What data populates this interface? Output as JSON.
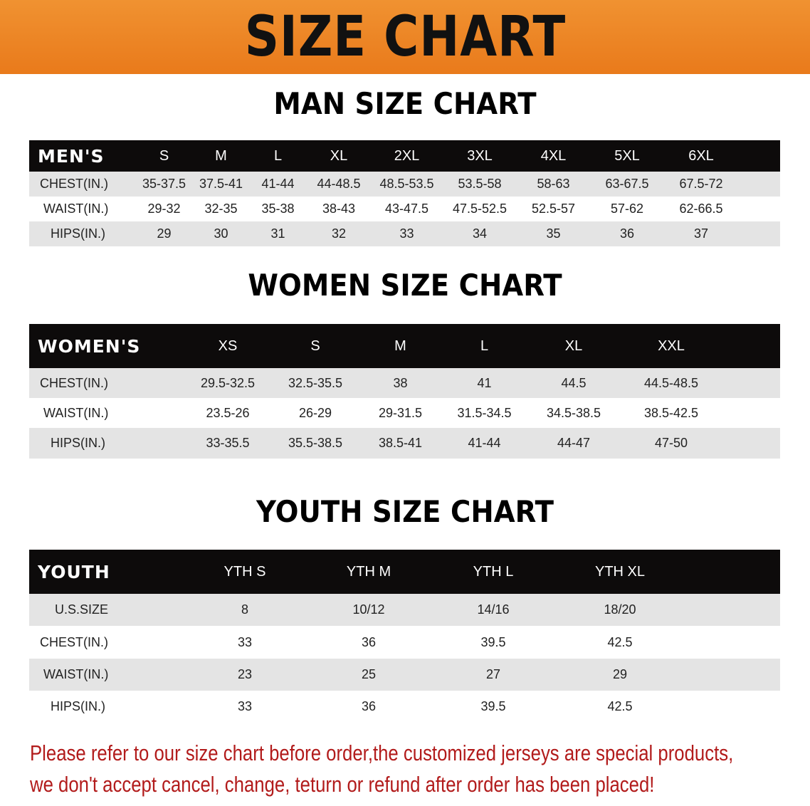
{
  "title": "SIZE CHART",
  "men": {
    "title": "MAN SIZE CHART",
    "header": [
      "MEN'S",
      "S",
      "M",
      "L",
      "XL",
      "2XL",
      "3XL",
      "4XL",
      "5XL",
      "6XL"
    ],
    "rows": [
      [
        "CHEST(IN.)",
        "35-37.5",
        "37.5-41",
        "41-44",
        "44-48.5",
        "48.5-53.5",
        "53.5-58",
        "58-63",
        "63-67.5",
        "67.5-72"
      ],
      [
        "WAIST(IN.)",
        "29-32",
        "32-35",
        "35-38",
        "38-43",
        "43-47.5",
        "47.5-52.5",
        "52.5-57",
        "57-62",
        "62-66.5"
      ],
      [
        "HIPS(IN.)",
        "29",
        "30",
        "31",
        "32",
        "33",
        "34",
        "35",
        "36",
        "37"
      ]
    ]
  },
  "women": {
    "title": "WOMEN SIZE CHART",
    "header": [
      "WOMEN'S",
      "XS",
      "S",
      "M",
      "L",
      "XL",
      "XXL"
    ],
    "rows": [
      [
        "CHEST(IN.)",
        "29.5-32.5",
        "32.5-35.5",
        "38",
        "41",
        "44.5",
        "44.5-48.5"
      ],
      [
        "WAIST(IN.)",
        "23.5-26",
        "26-29",
        "29-31.5",
        "31.5-34.5",
        "34.5-38.5",
        "38.5-42.5"
      ],
      [
        "HIPS(IN.)",
        "33-35.5",
        "35.5-38.5",
        "38.5-41",
        "41-44",
        "44-47",
        "47-50"
      ]
    ]
  },
  "youth": {
    "title": "YOUTH SIZE CHART",
    "header": [
      "YOUTH",
      "YTH S",
      "YTH M",
      "YTH L",
      "YTH XL"
    ],
    "rows": [
      [
        "U.S.SIZE",
        "8",
        "10/12",
        "14/16",
        "18/20"
      ],
      [
        "CHEST(IN.)",
        "33",
        "36",
        "39.5",
        "42.5"
      ],
      [
        "WAIST(IN.)",
        "23",
        "25",
        "27",
        "29"
      ],
      [
        "HIPS(IN.)",
        "33",
        "36",
        "39.5",
        "42.5"
      ]
    ]
  },
  "note": [
    "Please refer to our size chart before order,the customized jerseys are special products,",
    "we don't accept cancel, change, teturn or refund after order has been placed!"
  ]
}
